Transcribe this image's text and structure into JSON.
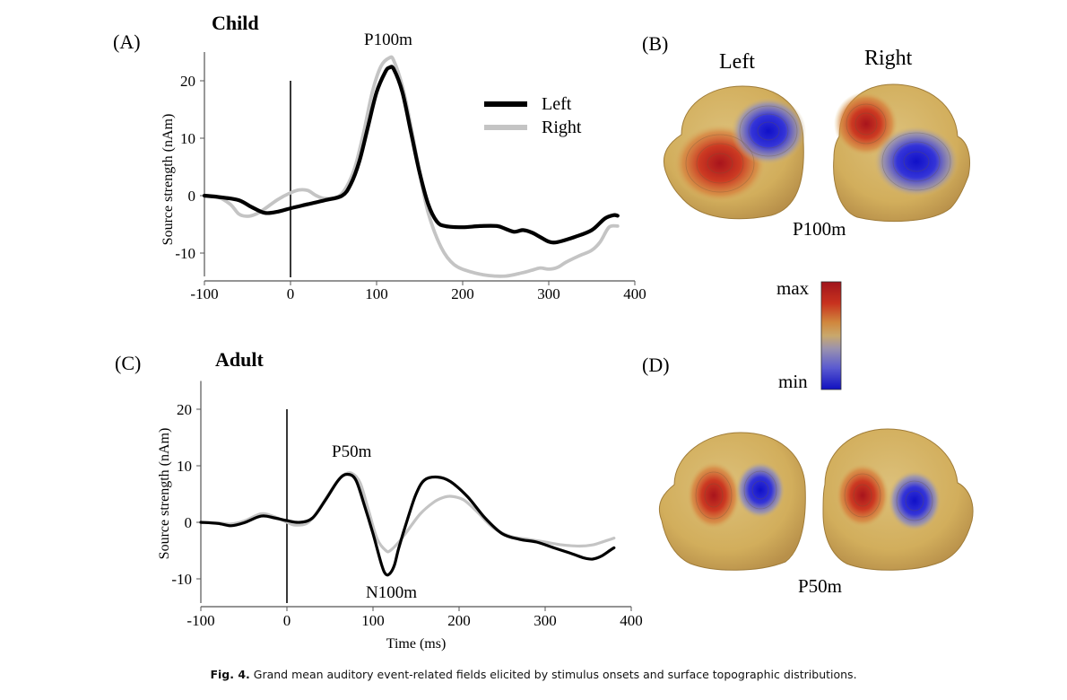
{
  "caption": {
    "label": "Fig. 4.",
    "text": "Grand mean auditory event-related fields elicited by stimulus onsets and surface topographic distributions."
  },
  "panels": {
    "A": {
      "letter": "(A)",
      "title": "Child",
      "peak_label": "P100m"
    },
    "B": {
      "letter": "(B)",
      "head_left": "Left",
      "head_right": "Right",
      "component": "P100m"
    },
    "C": {
      "letter": "(C)",
      "title": "Adult",
      "peak_labels": [
        "P50m",
        "N100m"
      ]
    },
    "D": {
      "letter": "(D)",
      "component": "P50m"
    }
  },
  "colorbar": {
    "max_label": "max",
    "min_label": "min"
  },
  "colors": {
    "left": "#000000",
    "right": "#c4c4c4",
    "max": "#b01818",
    "min": "#1010c8",
    "scalp": "#d9b86a"
  },
  "chart_data": [
    {
      "type": "line",
      "panel": "A",
      "title": "Child",
      "xlabel": "",
      "ylabel": "Source strength (nAm)",
      "xlim": [
        -100,
        400
      ],
      "ylim": [
        -15,
        25
      ],
      "xticks": [
        -100,
        0,
        100,
        200,
        300,
        400
      ],
      "yticks": [
        20,
        10,
        0,
        -10
      ],
      "legend": "top-right",
      "series": [
        {
          "name": "Left",
          "x": [
            -100,
            -80,
            -60,
            -45,
            -30,
            -15,
            0,
            20,
            40,
            60,
            70,
            80,
            90,
            100,
            110,
            115,
            120,
            130,
            140,
            150,
            160,
            170,
            180,
            200,
            220,
            240,
            250,
            260,
            270,
            280,
            290,
            300,
            310,
            330,
            350,
            365,
            375,
            380
          ],
          "y": [
            0,
            -0.3,
            -0.8,
            -2,
            -3,
            -2.8,
            -2.2,
            -1.5,
            -0.8,
            0,
            2,
            6,
            12,
            18,
            21.5,
            22.3,
            22,
            18,
            11,
            4,
            -1.5,
            -4.5,
            -5.3,
            -5.5,
            -5.3,
            -5.3,
            -5.8,
            -6.3,
            -6.0,
            -6.4,
            -7.2,
            -8.0,
            -8.1,
            -7.2,
            -6.0,
            -4.0,
            -3.4,
            -3.5
          ]
        },
        {
          "name": "Right",
          "x": [
            -100,
            -85,
            -70,
            -60,
            -50,
            -40,
            -30,
            -15,
            0,
            10,
            20,
            30,
            40,
            55,
            65,
            75,
            85,
            95,
            105,
            115,
            120,
            130,
            140,
            150,
            160,
            175,
            190,
            210,
            230,
            250,
            270,
            280,
            290,
            300,
            310,
            320,
            335,
            350,
            360,
            370,
            380
          ],
          "y": [
            0,
            -0.2,
            -1.5,
            -3.2,
            -3.6,
            -3.2,
            -2.3,
            -0.7,
            0.5,
            1.0,
            0.9,
            0.0,
            -0.5,
            -0.2,
            1.5,
            5,
            11,
            18,
            22.5,
            24,
            23.5,
            19,
            12,
            4,
            -3,
            -9,
            -12,
            -13.3,
            -13.9,
            -14.0,
            -13.4,
            -13,
            -12.6,
            -12.8,
            -12.5,
            -11.6,
            -10.5,
            -9.5,
            -8.0,
            -5.5,
            -5.3
          ]
        }
      ]
    },
    {
      "type": "line",
      "panel": "C",
      "title": "Adult",
      "xlabel": "Time (ms)",
      "ylabel": "Source strength (nAm)",
      "xlim": [
        -100,
        400
      ],
      "ylim": [
        -15,
        25
      ],
      "xticks": [
        -100,
        0,
        100,
        200,
        300,
        400
      ],
      "yticks": [
        20,
        10,
        0,
        -10
      ],
      "series": [
        {
          "name": "Left",
          "x": [
            -100,
            -80,
            -65,
            -50,
            -30,
            -15,
            0,
            15,
            30,
            45,
            60,
            70,
            80,
            90,
            100,
            110,
            115,
            120,
            125,
            130,
            140,
            150,
            160,
            175,
            190,
            210,
            230,
            250,
            270,
            290,
            310,
            330,
            345,
            355,
            365,
            375,
            380
          ],
          "y": [
            0,
            -0.2,
            -0.6,
            -0.1,
            1.1,
            0.8,
            0.3,
            0.0,
            0.8,
            4,
            7.5,
            8.5,
            7.5,
            3,
            -2,
            -7.5,
            -9.2,
            -9.0,
            -7.5,
            -4.5,
            0.5,
            5,
            7.5,
            8,
            7.2,
            4.5,
            0.8,
            -2,
            -3,
            -3.5,
            -4.5,
            -5.5,
            -6.3,
            -6.5,
            -6.0,
            -5.0,
            -4.5
          ]
        },
        {
          "name": "Right",
          "x": [
            -100,
            -80,
            -65,
            -50,
            -30,
            -15,
            0,
            10,
            25,
            40,
            55,
            65,
            75,
            85,
            95,
            105,
            115,
            120,
            130,
            140,
            155,
            170,
            180,
            190,
            205,
            220,
            240,
            260,
            280,
            300,
            320,
            340,
            355,
            370,
            380
          ],
          "y": [
            0,
            -0.1,
            -0.3,
            0.2,
            1.5,
            1.0,
            0.0,
            -0.5,
            0.0,
            3,
            6.5,
            8.3,
            8.7,
            7,
            2,
            -3,
            -5,
            -5,
            -3.5,
            -1.5,
            1.5,
            3.5,
            4.3,
            4.6,
            4.0,
            2.0,
            -1.0,
            -2.5,
            -3.0,
            -3.5,
            -4.0,
            -4.2,
            -4.0,
            -3.3,
            -2.8
          ]
        }
      ]
    }
  ]
}
